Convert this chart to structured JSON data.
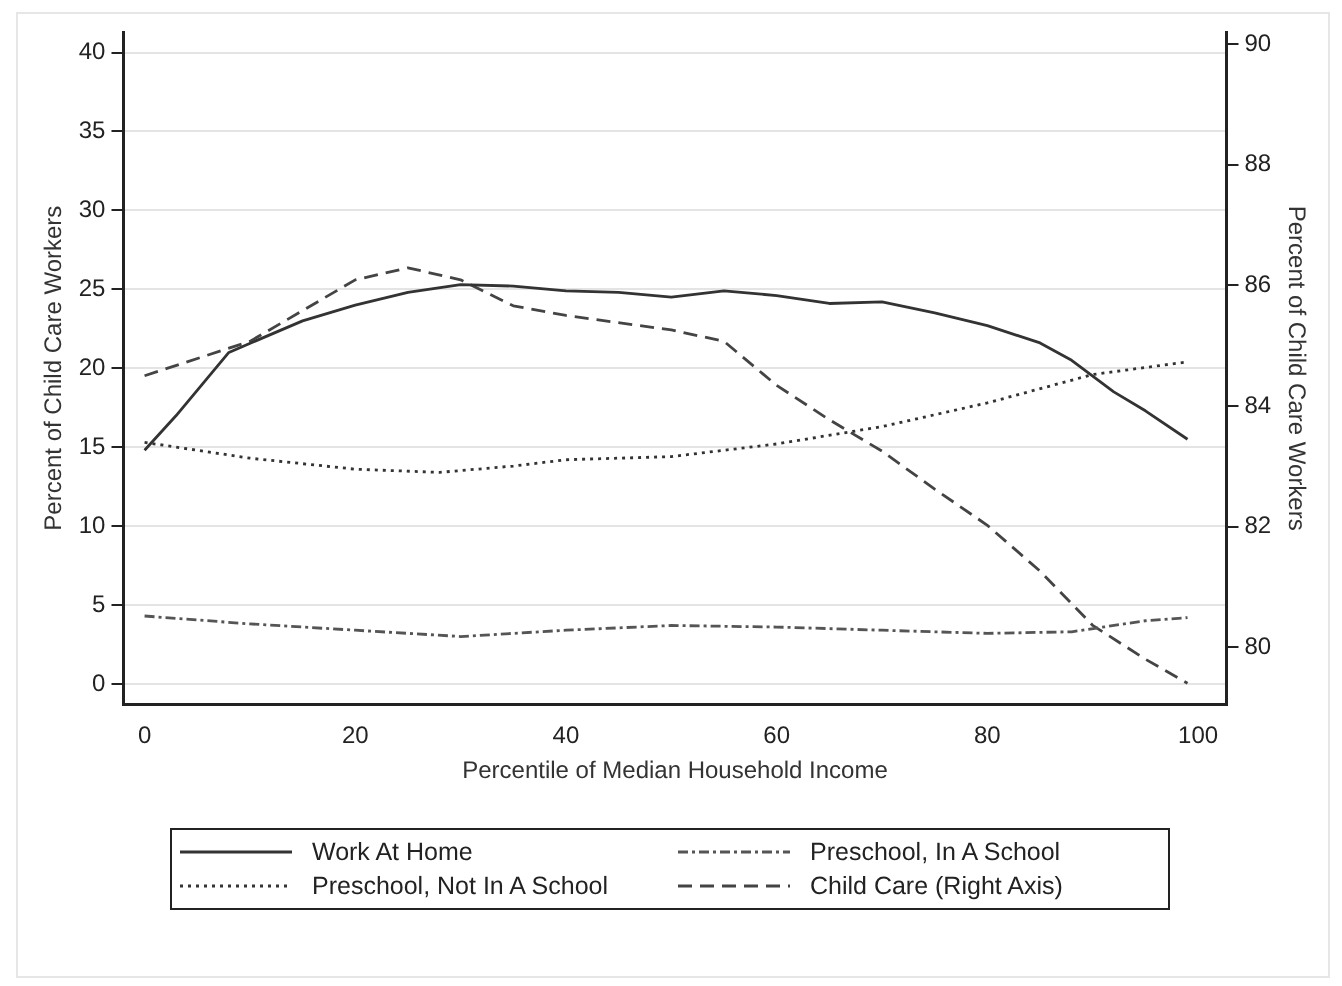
{
  "chart_data": {
    "type": "line",
    "xlabel": "Percentile of Median Household Income",
    "ylabel": "Percent of Child Care Workers",
    "y2label": "Percent of Child Care Workers",
    "xlim": [
      -2,
      102.7
    ],
    "xticks": [
      0,
      20,
      40,
      60,
      80,
      100
    ],
    "ylim": [
      -1.3,
      41.3
    ],
    "yticks": [
      0,
      5,
      10,
      15,
      20,
      25,
      30,
      35,
      40
    ],
    "y2lim": [
      79.05,
      90.2
    ],
    "y2ticks": [
      80,
      82,
      84,
      86,
      88,
      90
    ],
    "grid": "y",
    "legend": "bottom",
    "series": [
      {
        "name": "Work At Home",
        "color": "#333333",
        "line_style": "solid",
        "x": [
          0,
          3,
          8,
          15,
          20,
          25,
          30,
          35,
          40,
          45,
          50,
          55,
          60,
          65,
          70,
          75,
          80,
          85,
          88,
          92,
          95,
          99
        ],
        "values": [
          14.8,
          17,
          21,
          23,
          24,
          24.8,
          25.3,
          25.2,
          24.9,
          24.8,
          24.5,
          24.9,
          24.6,
          24.1,
          24.2,
          23.5,
          22.7,
          21.6,
          20.5,
          18.5,
          17.3,
          15.5
        ]
      },
      {
        "name": "Preschool, In A School",
        "color": "#555555",
        "line_style": "dashdot",
        "x": [
          0,
          10,
          20,
          30,
          40,
          50,
          60,
          70,
          80,
          88,
          95,
          99
        ],
        "values": [
          4.3,
          3.8,
          3.4,
          3,
          3.4,
          3.7,
          3.6,
          3.4,
          3.2,
          3.3,
          4,
          4.2
        ]
      },
      {
        "name": "Preschool, Not In A School",
        "color": "#333333",
        "line_style": "dotted",
        "x": [
          0,
          10,
          20,
          28,
          35,
          40,
          50,
          60,
          70,
          80,
          90,
          99
        ],
        "values": [
          15.3,
          14.3,
          13.6,
          13.4,
          13.8,
          14.2,
          14.4,
          15.2,
          16.3,
          17.8,
          19.6,
          20.4
        ]
      },
      {
        "name": "Child Care (Right Axis)",
        "color": "#444444",
        "line_style": "dashed",
        "axis": "y2",
        "x": [
          0,
          10,
          20,
          25,
          30,
          35,
          40,
          50,
          55,
          60,
          65,
          70,
          75,
          80,
          85,
          90,
          95,
          99
        ],
        "values": [
          84.5,
          85.07,
          86.09,
          86.29,
          86.09,
          85.66,
          85.5,
          85.26,
          85.07,
          84.34,
          83.77,
          83.25,
          82.62,
          82.02,
          81.26,
          80.36,
          79.8,
          79.4
        ]
      }
    ]
  }
}
